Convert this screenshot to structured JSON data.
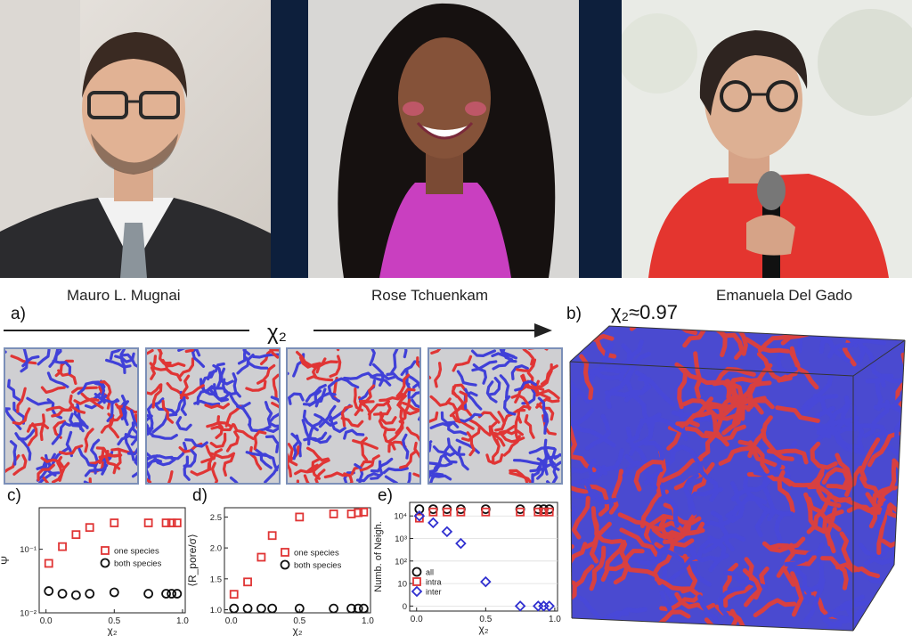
{
  "people": [
    {
      "name": "Mauro L. Mugnai"
    },
    {
      "name": "Rose Tchuenkam"
    },
    {
      "name": "Emanuela Del Gado"
    }
  ],
  "figure": {
    "panel_a": {
      "letter": "a)",
      "axis_label": "χ₂"
    },
    "panel_b": {
      "letter": "b)",
      "label": "χ₂≈0.97"
    },
    "panel_c": {
      "letter": "c)"
    },
    "panel_d": {
      "letter": "d)"
    },
    "panel_e": {
      "letter": "e)"
    },
    "colors": {
      "red": "#e03535",
      "blue": "#4040d8",
      "black": "#111111"
    }
  },
  "chart_data": [
    {
      "type": "scatter",
      "panel": "c",
      "xlabel": "χ₂",
      "ylabel": "Ψ",
      "ylog": true,
      "xlim": [
        -0.05,
        1.02
      ],
      "ylim": [
        0.01,
        0.45
      ],
      "xticks": [
        "0.0",
        "0.5",
        "1.0"
      ],
      "yticks": [
        {
          "label": "10⁻¹",
          "value": 0.1
        },
        {
          "label": "10⁻²",
          "value": 0.01
        }
      ],
      "legend": "bottom-right",
      "series": [
        {
          "name": "one species",
          "color": "#e03535",
          "marker": "square",
          "x": [
            0.02,
            0.12,
            0.22,
            0.32,
            0.5,
            0.75,
            0.88,
            0.92,
            0.96
          ],
          "y": [
            0.06,
            0.11,
            0.17,
            0.22,
            0.26,
            0.26,
            0.26,
            0.26,
            0.26
          ]
        },
        {
          "name": "both species",
          "color": "#111111",
          "marker": "circle",
          "x": [
            0.02,
            0.12,
            0.22,
            0.32,
            0.5,
            0.75,
            0.88,
            0.92,
            0.96
          ],
          "y": [
            0.022,
            0.02,
            0.019,
            0.02,
            0.021,
            0.02,
            0.02,
            0.02,
            0.02
          ]
        }
      ]
    },
    {
      "type": "scatter",
      "panel": "d",
      "xlabel": "χ₂",
      "ylabel": "⟨R_pore/σ⟩",
      "xlim": [
        -0.05,
        1.02
      ],
      "ylim": [
        0.95,
        2.65
      ],
      "xticks": [
        "0.0",
        "0.5",
        "1.0"
      ],
      "yticks": [
        "1.0",
        "1.5",
        "2.0",
        "2.5"
      ],
      "legend": "bottom-right",
      "series": [
        {
          "name": "one species",
          "color": "#e03535",
          "marker": "square",
          "x": [
            0.02,
            0.12,
            0.22,
            0.3,
            0.5,
            0.75,
            0.88,
            0.93,
            0.97
          ],
          "y": [
            1.25,
            1.45,
            1.85,
            2.2,
            2.5,
            2.55,
            2.55,
            2.57,
            2.58
          ]
        },
        {
          "name": "both species",
          "color": "#111111",
          "marker": "circle",
          "x": [
            0.02,
            0.12,
            0.22,
            0.3,
            0.5,
            0.75,
            0.88,
            0.93,
            0.97
          ],
          "y": [
            1.02,
            1.02,
            1.02,
            1.02,
            1.02,
            1.02,
            1.02,
            1.02,
            1.02
          ]
        }
      ]
    },
    {
      "type": "scatter",
      "panel": "e",
      "xlabel": "χ₂",
      "ylabel": "Numb. of Neigh.",
      "ylog": true,
      "xlim": [
        -0.05,
        1.02
      ],
      "xticks": [
        "0.0",
        "0.5",
        "1.0"
      ],
      "yticks": [
        {
          "label": "10⁴",
          "value": 10000
        },
        {
          "label": "10³",
          "value": 1000
        },
        {
          "label": "10²",
          "value": 100
        },
        {
          "label": "10",
          "value": 10
        },
        {
          "label": "0",
          "value": 1
        }
      ],
      "legend": "bottom-left",
      "series": [
        {
          "name": "all",
          "color": "#111111",
          "marker": "circle",
          "x": [
            0.02,
            0.12,
            0.22,
            0.32,
            0.5,
            0.75,
            0.88,
            0.92,
            0.96
          ],
          "y": [
            20000,
            20000,
            20000,
            20000,
            20000,
            20000,
            20000,
            20000,
            20000
          ]
        },
        {
          "name": "intra",
          "color": "#e03535",
          "marker": "square",
          "x": [
            0.02,
            0.12,
            0.22,
            0.32,
            0.5,
            0.75,
            0.88,
            0.92,
            0.96
          ],
          "y": [
            8000,
            15000,
            15000,
            15000,
            15000,
            15000,
            15000,
            15000,
            15000
          ]
        },
        {
          "name": "inter",
          "color": "#3030d0",
          "marker": "diamond",
          "x": [
            0.02,
            0.12,
            0.22,
            0.32,
            0.5,
            0.75,
            0.88,
            0.92,
            0.96
          ],
          "y": [
            10000,
            5000,
            2000,
            600,
            12,
            1,
            1,
            1,
            1
          ]
        }
      ]
    }
  ]
}
